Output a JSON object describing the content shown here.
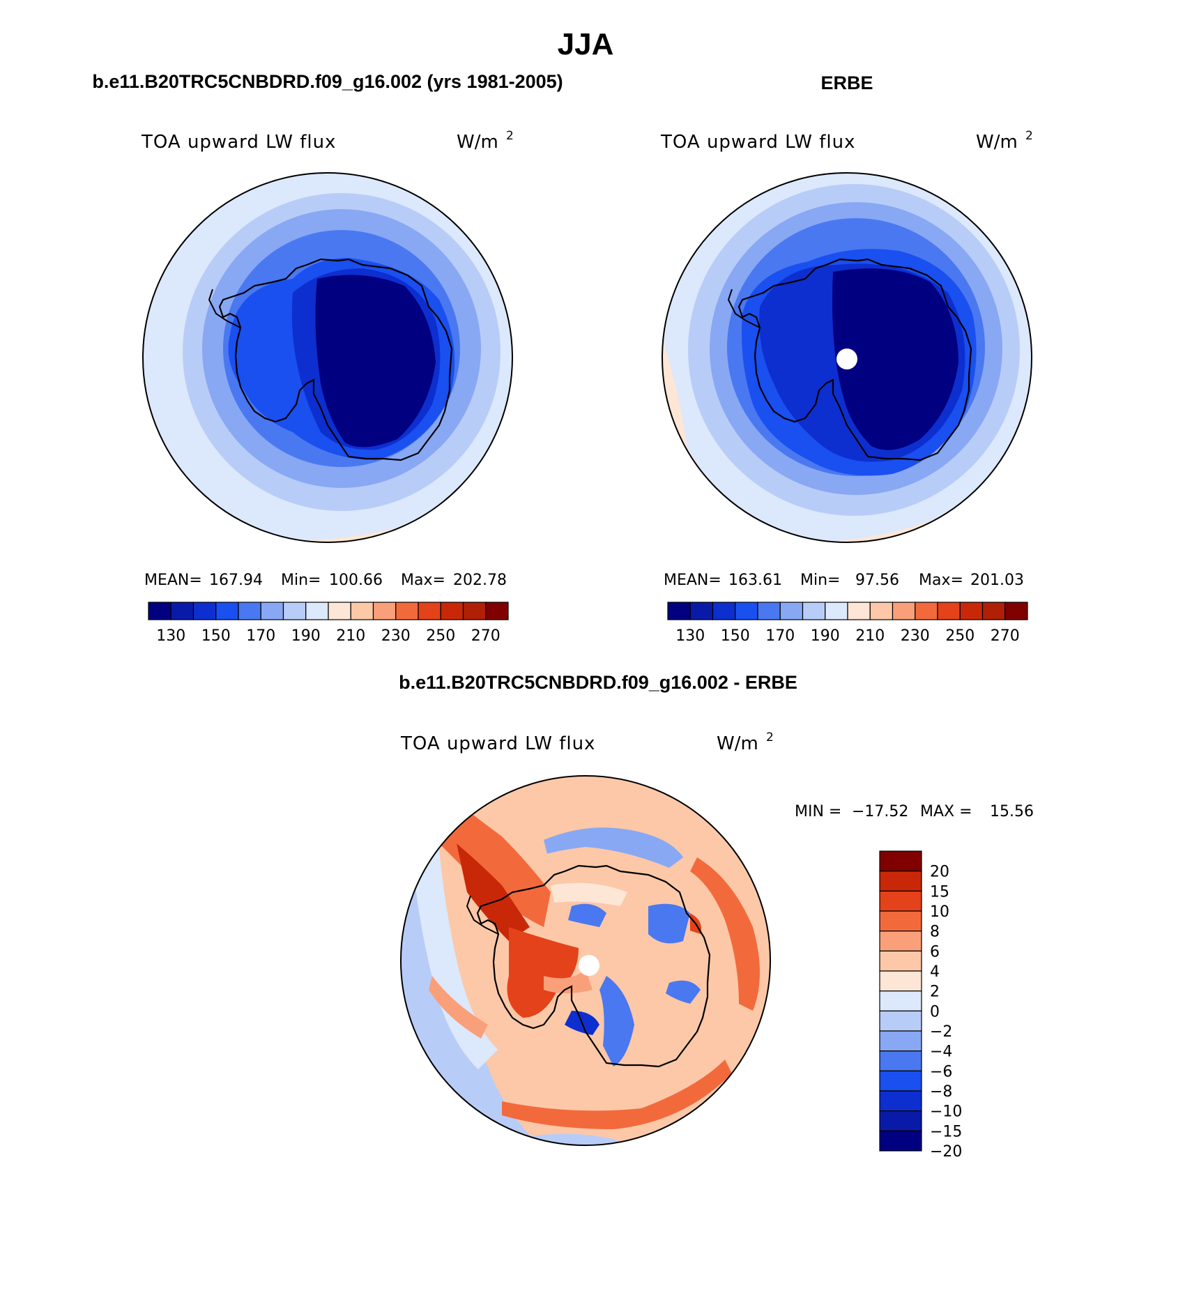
{
  "figure": {
    "title": "JJA",
    "panel_left_title": "b.e11.B20TRC5CNBDRD.f09_g16.002 (yrs 1981-2005)",
    "panel_right_title": "ERBE",
    "panel_diff_title": "b.e11.B20TRC5CNBDRD.f09_g16.002 - ERBE"
  },
  "panels": {
    "model": {
      "variable": "TOA upward LW flux",
      "units_base": "W/m",
      "units_exp": "2",
      "stats": {
        "mean_label": "MEAN=",
        "mean": "167.94",
        "min_label": "Min=",
        "min": "100.66",
        "max_label": "Max=",
        "max": "202.78"
      },
      "colorbar_ticks": [
        "130",
        "150",
        "170",
        "190",
        "210",
        "230",
        "250",
        "270"
      ]
    },
    "obs": {
      "variable": "TOA upward LW flux",
      "units_base": "W/m",
      "units_exp": "2",
      "stats": {
        "mean_label": "MEAN=",
        "mean": "163.61",
        "min_label": "Min=",
        "min": "97.56",
        "max_label": "Max=",
        "max": "201.03"
      },
      "colorbar_ticks": [
        "130",
        "150",
        "170",
        "190",
        "210",
        "230",
        "250",
        "270"
      ]
    },
    "diff": {
      "variable": "TOA upward LW flux",
      "units_base": "W/m",
      "units_exp": "2",
      "minmax": {
        "min_label": "MIN =",
        "min": "−17.52",
        "max_label": "MAX =",
        "max": "15.56"
      },
      "colorbar_ticks": [
        "20",
        "15",
        "10",
        "8",
        "6",
        "4",
        "2",
        "0",
        "−2",
        "−4",
        "−6",
        "−8",
        "−10",
        "−15",
        "−20"
      ]
    }
  },
  "colors": {
    "abs_scale": [
      "#000080",
      "#0a1aa8",
      "#0d2fd0",
      "#1a4ff0",
      "#4a78f0",
      "#88a8f4",
      "#b8ccf8",
      "#dce8fb",
      "#fde6d6",
      "#fcc8a8",
      "#f9a07a",
      "#f26a3c",
      "#e4421a",
      "#c82808",
      "#b02006",
      "#800000"
    ],
    "diff_scale": [
      "#000080",
      "#0a1aa8",
      "#0d2fd0",
      "#1a4ff0",
      "#4a78f0",
      "#88a8f4",
      "#b8ccf8",
      "#dce8fb",
      "#fde6d6",
      "#fcc8a8",
      "#f9a07a",
      "#f26a3c",
      "#e4421a",
      "#c82808",
      "#800000"
    ]
  },
  "chart_data": [
    {
      "type": "heatmap",
      "title": "b.e11.B20TRC5CNBDRD.f09_g16.002 (yrs 1981-2005)",
      "variable": "TOA upward LW flux",
      "units": "W/m2",
      "projection": "south polar stereographic",
      "mean": 167.94,
      "min": 100.66,
      "max": 202.78,
      "contour_levels": [
        130,
        140,
        150,
        160,
        170,
        180,
        190,
        200,
        210,
        220,
        230,
        240,
        250,
        260,
        270
      ]
    },
    {
      "type": "heatmap",
      "title": "ERBE",
      "variable": "TOA upward LW flux",
      "units": "W/m2",
      "projection": "south polar stereographic",
      "mean": 163.61,
      "min": 97.56,
      "max": 201.03,
      "contour_levels": [
        130,
        140,
        150,
        160,
        170,
        180,
        190,
        200,
        210,
        220,
        230,
        240,
        250,
        260,
        270
      ]
    },
    {
      "type": "heatmap",
      "title": "b.e11.B20TRC5CNBDRD.f09_g16.002 - ERBE",
      "variable": "TOA upward LW flux",
      "units": "W/m2",
      "projection": "south polar stereographic",
      "min": -17.52,
      "max": 15.56,
      "contour_levels": [
        -20,
        -15,
        -10,
        -8,
        -6,
        -4,
        -2,
        0,
        2,
        4,
        6,
        8,
        10,
        15,
        20
      ]
    }
  ]
}
